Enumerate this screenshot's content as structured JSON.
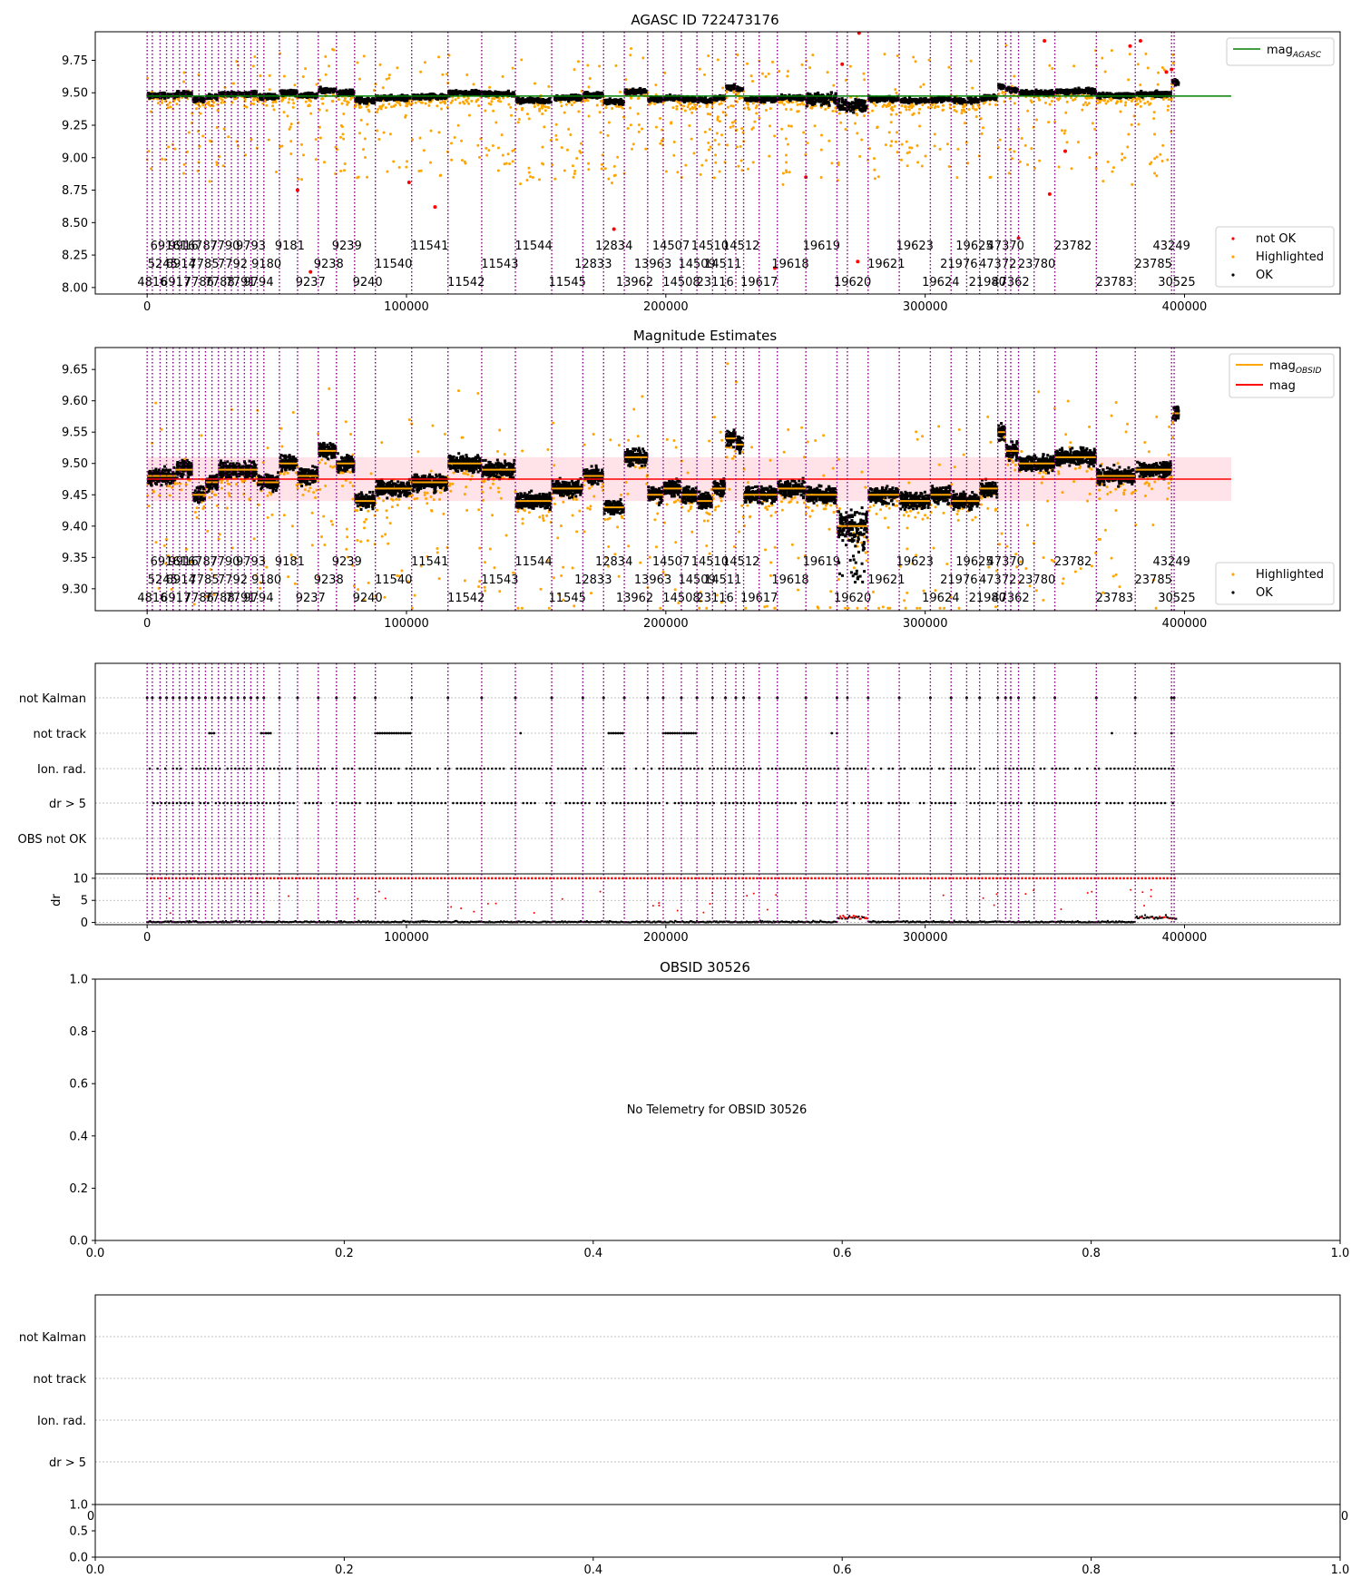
{
  "figure": {
    "background": "#ffffff"
  },
  "colors": {
    "ok": "#000000",
    "highlighted": "#ffa500",
    "not_ok": "#ff0000",
    "agasc_line": "#008000",
    "mag_line": "#ff0000",
    "obs_mag": "#ffa500",
    "obs_line": "#800080",
    "band": "#ffc0cb",
    "grid": "#b0b0b0"
  },
  "obs_boundaries": [
    0,
    2000,
    5000,
    7500,
    10000,
    12500,
    15000,
    17500,
    20000,
    22500,
    25000,
    27500,
    30000,
    32500,
    35000,
    37500,
    40000,
    42500,
    45000,
    51000,
    58000,
    66000,
    73000,
    80000,
    88000,
    102000,
    116000,
    129000,
    142000,
    156000,
    168000,
    176000,
    184000,
    193000,
    199000,
    206000,
    212000,
    218000,
    223000,
    227000,
    230000,
    236000,
    243000,
    254000,
    266000,
    270000,
    278000,
    290000,
    302000,
    310000,
    316000,
    321000,
    328000,
    331000,
    333000,
    336000,
    342000,
    350000,
    366000,
    381000,
    395000,
    396000
  ],
  "obs_labels_top": [
    {
      "x": 7000,
      "t": "6916"
    },
    {
      "x": 14000,
      "t": "9916"
    },
    {
      "x": 20000,
      "t": "16787"
    },
    {
      "x": 30000,
      "t": "7790"
    },
    {
      "x": 40000,
      "t": "9793"
    },
    {
      "x": 55000,
      "t": "9181"
    },
    {
      "x": 77000,
      "t": "9239"
    },
    {
      "x": 109000,
      "t": "11541"
    },
    {
      "x": 149000,
      "t": "11544"
    },
    {
      "x": 180000,
      "t": "12834"
    },
    {
      "x": 202000,
      "t": "14507"
    },
    {
      "x": 217000,
      "t": "14510"
    },
    {
      "x": 229000,
      "t": "14512"
    },
    {
      "x": 260000,
      "t": "19619"
    },
    {
      "x": 296000,
      "t": "19623"
    },
    {
      "x": 319000,
      "t": "19625"
    },
    {
      "x": 331000,
      "t": "47370"
    },
    {
      "x": 357000,
      "t": "23782"
    },
    {
      "x": 395000,
      "t": "43249"
    }
  ],
  "obs_labels_mid": [
    {
      "x": 6000,
      "t": "5245"
    },
    {
      "x": 13000,
      "t": "6914"
    },
    {
      "x": 22000,
      "t": "7785"
    },
    {
      "x": 33000,
      "t": "7792"
    },
    {
      "x": 46000,
      "t": "9180"
    },
    {
      "x": 70000,
      "t": "9238"
    },
    {
      "x": 95000,
      "t": "11540"
    },
    {
      "x": 136000,
      "t": "11543"
    },
    {
      "x": 172000,
      "t": "12833"
    },
    {
      "x": 195000,
      "t": "13963"
    },
    {
      "x": 212000,
      "t": "14509"
    },
    {
      "x": 222000,
      "t": "14511"
    },
    {
      "x": 248000,
      "t": "19618"
    },
    {
      "x": 285000,
      "t": "19621"
    },
    {
      "x": 313000,
      "t": "21976"
    },
    {
      "x": 328000,
      "t": "47372"
    },
    {
      "x": 343000,
      "t": "23780"
    },
    {
      "x": 388000,
      "t": "23785"
    }
  ],
  "obs_labels_bot": [
    {
      "x": 2000,
      "t": "4816"
    },
    {
      "x": 11000,
      "t": "6917"
    },
    {
      "x": 20000,
      "t": "7786"
    },
    {
      "x": 28000,
      "t": "7788"
    },
    {
      "x": 36000,
      "t": "7791"
    },
    {
      "x": 43000,
      "t": "9794"
    },
    {
      "x": 63000,
      "t": "9237"
    },
    {
      "x": 85000,
      "t": "9240"
    },
    {
      "x": 123000,
      "t": "11542"
    },
    {
      "x": 162000,
      "t": "11545"
    },
    {
      "x": 188000,
      "t": "13962"
    },
    {
      "x": 206000,
      "t": "14508"
    },
    {
      "x": 219000,
      "t": "23116"
    },
    {
      "x": 236000,
      "t": "19617"
    },
    {
      "x": 272000,
      "t": "19620"
    },
    {
      "x": 306000,
      "t": "19624"
    },
    {
      "x": 324000,
      "t": "21980"
    },
    {
      "x": 333000,
      "t": "47362"
    },
    {
      "x": 373000,
      "t": "23783"
    },
    {
      "x": 397000,
      "t": "30525"
    }
  ],
  "segments": [
    {
      "x0": 0,
      "x1": 11000,
      "mean": 9.48
    },
    {
      "x0": 11000,
      "x1": 17500,
      "mean": 9.49
    },
    {
      "x0": 17500,
      "x1": 22500,
      "mean": 9.45
    },
    {
      "x0": 22500,
      "x1": 27500,
      "mean": 9.47
    },
    {
      "x0": 27500,
      "x1": 35000,
      "mean": 9.49
    },
    {
      "x0": 35000,
      "x1": 42500,
      "mean": 9.49
    },
    {
      "x0": 42500,
      "x1": 51000,
      "mean": 9.47
    },
    {
      "x0": 51000,
      "x1": 58000,
      "mean": 9.5
    },
    {
      "x0": 58000,
      "x1": 66000,
      "mean": 9.48
    },
    {
      "x0": 66000,
      "x1": 73000,
      "mean": 9.52
    },
    {
      "x0": 73000,
      "x1": 80000,
      "mean": 9.5
    },
    {
      "x0": 80000,
      "x1": 88000,
      "mean": 9.44
    },
    {
      "x0": 88000,
      "x1": 102000,
      "mean": 9.46
    },
    {
      "x0": 102000,
      "x1": 116000,
      "mean": 9.47
    },
    {
      "x0": 116000,
      "x1": 129000,
      "mean": 9.5
    },
    {
      "x0": 129000,
      "x1": 142000,
      "mean": 9.49
    },
    {
      "x0": 142000,
      "x1": 156000,
      "mean": 9.44
    },
    {
      "x0": 156000,
      "x1": 168000,
      "mean": 9.46
    },
    {
      "x0": 168000,
      "x1": 176000,
      "mean": 9.48
    },
    {
      "x0": 176000,
      "x1": 184000,
      "mean": 9.43
    },
    {
      "x0": 184000,
      "x1": 193000,
      "mean": 9.51
    },
    {
      "x0": 193000,
      "x1": 199000,
      "mean": 9.45
    },
    {
      "x0": 199000,
      "x1": 206000,
      "mean": 9.46
    },
    {
      "x0": 206000,
      "x1": 212000,
      "mean": 9.45
    },
    {
      "x0": 212000,
      "x1": 218000,
      "mean": 9.44
    },
    {
      "x0": 218000,
      "x1": 223000,
      "mean": 9.46
    },
    {
      "x0": 223000,
      "x1": 227000,
      "mean": 9.54
    },
    {
      "x0": 227000,
      "x1": 230000,
      "mean": 9.53
    },
    {
      "x0": 230000,
      "x1": 243000,
      "mean": 9.45
    },
    {
      "x0": 243000,
      "x1": 254000,
      "mean": 9.46
    },
    {
      "x0": 254000,
      "x1": 266000,
      "mean": 9.45
    },
    {
      "x0": 266000,
      "x1": 278000,
      "mean": 9.4
    },
    {
      "x0": 278000,
      "x1": 290000,
      "mean": 9.45
    },
    {
      "x0": 290000,
      "x1": 302000,
      "mean": 9.44
    },
    {
      "x0": 302000,
      "x1": 310000,
      "mean": 9.45
    },
    {
      "x0": 310000,
      "x1": 316000,
      "mean": 9.44
    },
    {
      "x0": 316000,
      "x1": 321000,
      "mean": 9.44
    },
    {
      "x0": 321000,
      "x1": 328000,
      "mean": 9.46
    },
    {
      "x0": 328000,
      "x1": 331000,
      "mean": 9.55
    },
    {
      "x0": 331000,
      "x1": 336000,
      "mean": 9.52
    },
    {
      "x0": 336000,
      "x1": 350000,
      "mean": 9.5
    },
    {
      "x0": 350000,
      "x1": 366000,
      "mean": 9.51
    },
    {
      "x0": 366000,
      "x1": 381000,
      "mean": 9.48
    },
    {
      "x0": 381000,
      "x1": 395000,
      "mean": 9.49
    },
    {
      "x0": 395000,
      "x1": 398000,
      "mean": 9.58
    }
  ],
  "chart_data": [
    {
      "type": "scatter",
      "title": "AGASC ID 722473176",
      "xlim": [
        -20000,
        460000
      ],
      "ylim": [
        7.95,
        9.97
      ],
      "xticks": [
        0,
        100000,
        200000,
        300000,
        400000
      ],
      "yticks": [
        8.0,
        8.25,
        8.5,
        8.75,
        9.0,
        9.25,
        9.5,
        9.75
      ],
      "ytick_labels": [
        "8.00",
        "8.25",
        "8.50",
        "8.75",
        "9.00",
        "9.25",
        "9.50",
        "9.75"
      ],
      "mag_agasc": 9.475,
      "legend_top": [
        {
          "label": "mag",
          "sub": "AGASC",
          "kind": "line",
          "color": "#008000"
        }
      ],
      "legend_bottom": [
        {
          "label": "not OK",
          "kind": "dot",
          "color": "#ff0000"
        },
        {
          "label": "Highlighted",
          "kind": "dot",
          "color": "#ffa500"
        },
        {
          "label": "OK",
          "kind": "dot",
          "color": "#000000"
        }
      ]
    },
    {
      "type": "scatter",
      "title": "Magnitude Estimates",
      "xlim": [
        -20000,
        460000
      ],
      "ylim": [
        9.265,
        9.685
      ],
      "xticks": [
        0,
        100000,
        200000,
        300000,
        400000
      ],
      "yticks": [
        9.3,
        9.35,
        9.4,
        9.45,
        9.5,
        9.55,
        9.6,
        9.65
      ],
      "ytick_labels": [
        "9.30",
        "9.35",
        "9.40",
        "9.45",
        "9.50",
        "9.55",
        "9.60",
        "9.65"
      ],
      "mag": 9.475,
      "mag_band": [
        9.44,
        9.51
      ],
      "legend_top": [
        {
          "label": "mag",
          "sub": "OBSID",
          "kind": "line",
          "color": "#ffa500"
        },
        {
          "label": "mag",
          "sub": "",
          "kind": "line",
          "color": "#ff0000"
        }
      ],
      "legend_bottom": [
        {
          "label": "Highlighted",
          "kind": "dot",
          "color": "#ffa500"
        },
        {
          "label": "OK",
          "kind": "dot",
          "color": "#000000"
        }
      ]
    },
    {
      "type": "scatter",
      "title": "",
      "flags": [
        "not Kalman",
        "not track",
        "Ion. rad.",
        "dr > 5",
        "OBS not OK"
      ],
      "flag_sparse": [
        false,
        true,
        false,
        false,
        false
      ],
      "dr_ylim": [
        -0.5,
        11
      ],
      "dr_yticks": [
        0,
        5,
        10
      ],
      "ylabel": "dr",
      "xticks": [
        0,
        100000,
        200000,
        300000,
        400000
      ]
    },
    {
      "type": "scatter",
      "title": "OBSID 30526",
      "message": "No Telemetry for OBSID 30526",
      "xticks": [
        "0.0",
        "0.2",
        "0.4",
        "0.6",
        "0.8",
        "1.0"
      ],
      "yticks": [
        "0.0",
        "0.2",
        "0.4",
        "0.6",
        "0.8",
        "1.0"
      ]
    },
    {
      "type": "scatter",
      "title": "",
      "flags": [
        "not Kalman",
        "not track",
        "Ion. rad.",
        "dr > 5"
      ],
      "stray_ticks": [
        "0",
        "0"
      ],
      "dr_yticks": [
        "0.0",
        "0.5",
        "1.0"
      ],
      "xticks": [
        "0.0",
        "0.2",
        "0.4",
        "0.6",
        "0.8",
        "1.0"
      ]
    }
  ]
}
